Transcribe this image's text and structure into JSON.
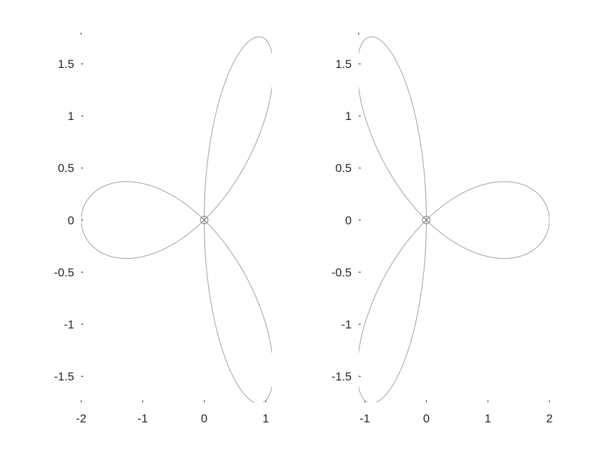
{
  "chart_data": [
    {
      "type": "line",
      "title": "",
      "xlabel": "",
      "ylabel": "",
      "xlim": [
        -2,
        1.1
      ],
      "ylim": [
        -1.75,
        1.8
      ],
      "grid": false,
      "xticks": [
        -2,
        -1,
        0,
        1
      ],
      "xticklabels": [
        "-2",
        "-1",
        "0",
        "1"
      ],
      "yticks": [
        -1.5,
        -1,
        -0.5,
        0,
        0.5,
        1,
        1.5
      ],
      "yticklabels": [
        "-1.5",
        "-1",
        "-0.5",
        "0",
        "0.5",
        "1",
        "1.5"
      ],
      "series": [
        {
          "curve": "polar",
          "r": "2*cos(3*theta)",
          "theta_range_deg": [
            0,
            180
          ],
          "rotation_deg": 180,
          "color": "#a6a6a6"
        }
      ],
      "marker": {
        "x": 0,
        "y": 0,
        "style": "circled-x",
        "color": "#808080"
      }
    },
    {
      "type": "line",
      "title": "",
      "xlabel": "",
      "ylabel": "",
      "xlim": [
        -1.1,
        2
      ],
      "ylim": [
        -1.75,
        1.8
      ],
      "grid": false,
      "xticks": [
        -1,
        0,
        1,
        2
      ],
      "xticklabels": [
        "-1",
        "0",
        "1",
        "2"
      ],
      "yticks": [
        -1.5,
        -1,
        -0.5,
        0,
        0.5,
        1,
        1.5
      ],
      "yticklabels": [
        "-1.5",
        "-1",
        "-0.5",
        "0",
        "0.5",
        "1",
        "1.5"
      ],
      "series": [
        {
          "curve": "polar",
          "r": "2*cos(3*theta)",
          "theta_range_deg": [
            0,
            180
          ],
          "rotation_deg": 0,
          "color": "#a6a6a6"
        }
      ],
      "marker": {
        "x": 0,
        "y": 0,
        "style": "circled-x",
        "color": "#808080"
      }
    }
  ]
}
